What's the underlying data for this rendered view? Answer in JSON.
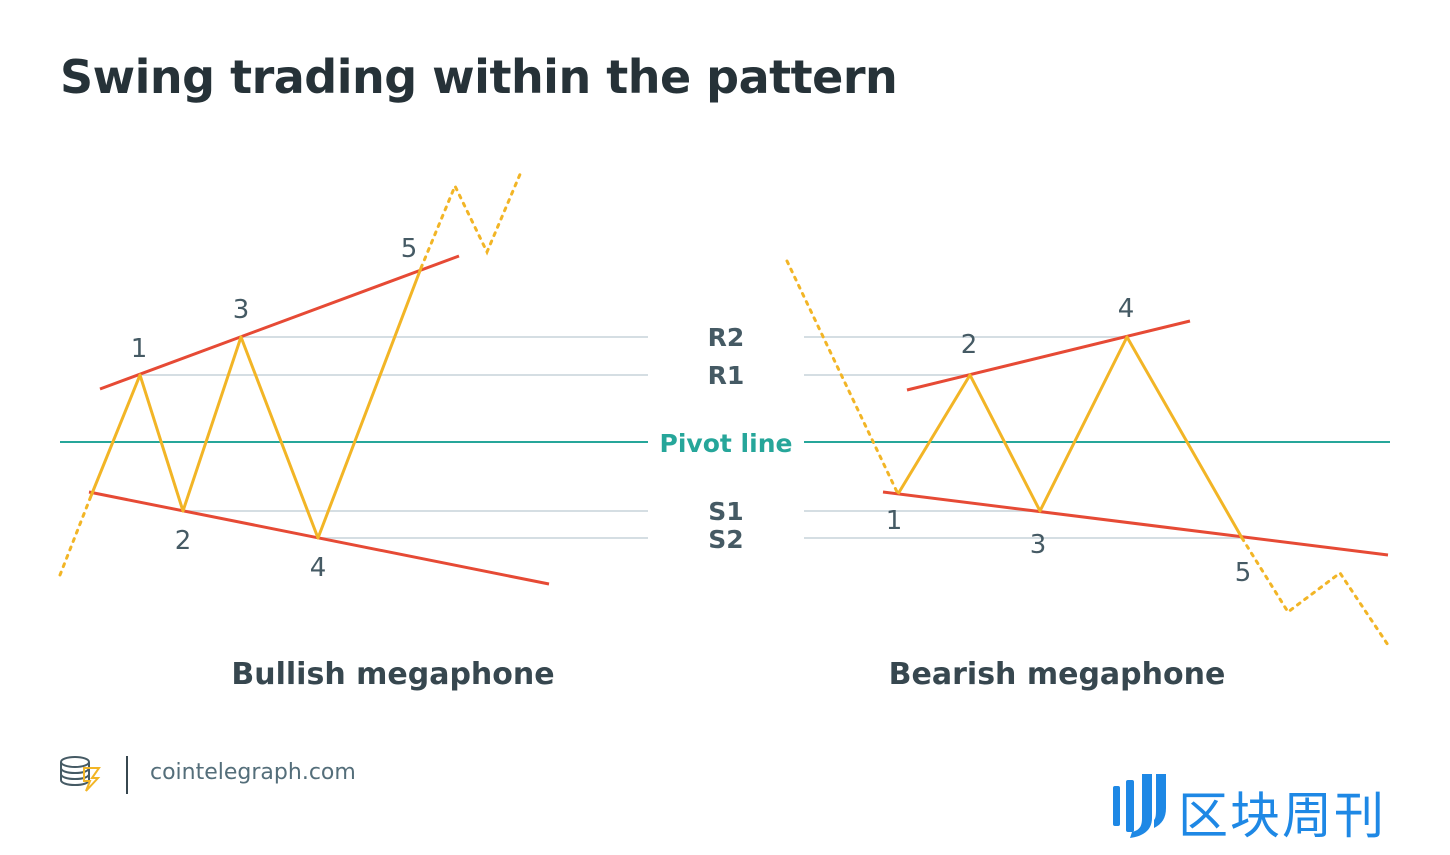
{
  "title": "Swing trading within the pattern",
  "levels": {
    "r2": "R2",
    "r1": "R1",
    "pivot": "Pivot line",
    "s1": "S1",
    "s2": "S2"
  },
  "bullish": {
    "caption": "Bullish megaphone",
    "points": [
      "1",
      "2",
      "3",
      "4",
      "5"
    ]
  },
  "bearish": {
    "caption": "Bearish megaphone",
    "points": [
      "1",
      "2",
      "3",
      "4",
      "5"
    ]
  },
  "footer": {
    "site": "cointelegraph.com",
    "watermark": "区块周刊"
  },
  "colors": {
    "title": "#263238",
    "trendline": "#e64a35",
    "price": "#f2b526",
    "pivot": "#26a69a",
    "level_line": "#cfd8dc",
    "level_label": "#455a64",
    "point_label": "#455a64",
    "watermark": "#1e88e5"
  }
}
